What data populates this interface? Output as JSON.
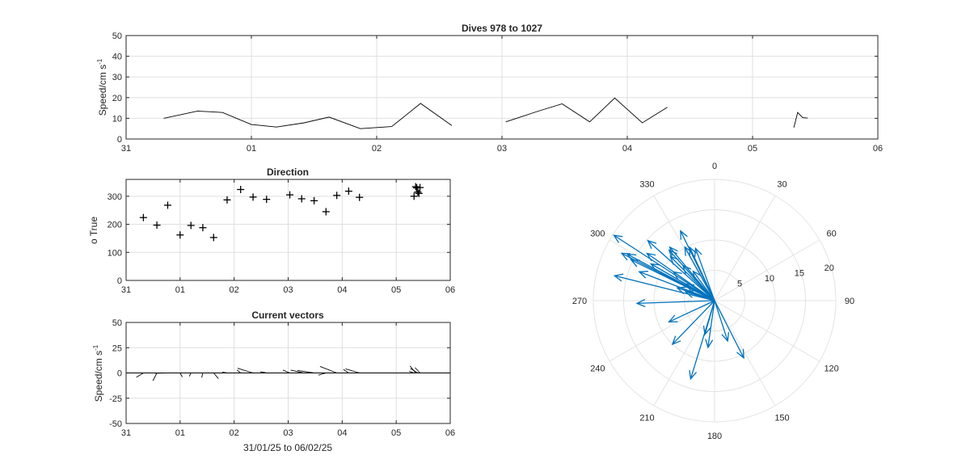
{
  "chart_data": [
    {
      "id": "speed",
      "type": "line",
      "title": "Dives 978 to 1027",
      "ylabel": "Speed/cm s",
      "ylabel_sup": "-1",
      "xlabel": "",
      "ylim": [
        0,
        50
      ],
      "yticks": [
        0,
        10,
        20,
        30,
        40,
        50
      ],
      "xlim_days": [
        31,
        37
      ],
      "xticks": [
        "31",
        "01",
        "02",
        "03",
        "04",
        "05",
        "06"
      ],
      "grid": true,
      "segments": [
        [
          [
            31.3,
            10
          ],
          [
            31.57,
            13.5
          ],
          [
            31.77,
            12.8
          ],
          [
            32.0,
            7
          ],
          [
            32.2,
            5.8
          ],
          [
            32.42,
            7.8
          ],
          [
            32.62,
            10.6
          ],
          [
            32.87,
            5
          ],
          [
            33.12,
            6
          ],
          [
            33.35,
            17.2
          ],
          [
            33.6,
            6.5
          ]
        ],
        [
          [
            34.03,
            8.3
          ],
          [
            34.28,
            13.3
          ],
          [
            34.48,
            17
          ],
          [
            34.7,
            8.3
          ],
          [
            34.9,
            19.8
          ],
          [
            35.12,
            7.8
          ],
          [
            35.32,
            15.3
          ]
        ],
        [
          [
            36.33,
            5.5
          ],
          [
            36.36,
            12.8
          ],
          [
            36.4,
            10.3
          ],
          [
            36.44,
            10.1
          ]
        ]
      ]
    },
    {
      "id": "direction",
      "type": "scatter",
      "title": "Direction",
      "ylabel": "o True",
      "xlabel": "",
      "ylim": [
        0,
        360
      ],
      "yticks": [
        0,
        100,
        200,
        300
      ],
      "xlim_days": [
        31,
        37
      ],
      "xticks": [
        "31",
        "01",
        "02",
        "03",
        "04",
        "05",
        "06"
      ],
      "grid": true,
      "marker": "+",
      "points": [
        [
          31.32,
          224
        ],
        [
          31.57,
          197
        ],
        [
          31.77,
          268
        ],
        [
          32.0,
          162
        ],
        [
          32.2,
          196
        ],
        [
          32.42,
          188
        ],
        [
          32.62,
          153
        ],
        [
          32.87,
          287
        ],
        [
          33.12,
          324
        ],
        [
          33.35,
          297
        ],
        [
          33.6,
          289
        ],
        [
          34.03,
          305
        ],
        [
          34.25,
          291
        ],
        [
          34.48,
          284
        ],
        [
          34.7,
          245
        ],
        [
          34.9,
          303
        ],
        [
          35.12,
          318
        ],
        [
          35.32,
          296
        ],
        [
          36.33,
          300
        ],
        [
          36.36,
          334
        ],
        [
          36.38,
          330
        ],
        [
          36.4,
          315
        ],
        [
          36.42,
          310
        ],
        [
          36.44,
          331
        ]
      ]
    },
    {
      "id": "vectors",
      "type": "stick",
      "title": "Current vectors",
      "ylabel": "Speed/cm s",
      "ylabel_sup": "-1",
      "xlabel": "31/01/25 to 06/02/25",
      "ylim": [
        -50,
        50
      ],
      "yticks": [
        -50,
        -25,
        0,
        25,
        50
      ],
      "xlim_days": [
        31,
        37
      ],
      "xticks": [
        "31",
        "01",
        "02",
        "03",
        "04",
        "05",
        "06"
      ],
      "grid": true,
      "sticks": [
        [
          31.32,
          -10,
          224
        ],
        [
          31.57,
          -13.5,
          197
        ],
        [
          31.77,
          -12.8,
          268
        ],
        [
          32.0,
          -7,
          162
        ],
        [
          32.2,
          -5.8,
          196
        ],
        [
          32.42,
          -7.8,
          188
        ],
        [
          32.62,
          -10.6,
          153
        ],
        [
          32.87,
          -5,
          287
        ],
        [
          33.12,
          6,
          324
        ],
        [
          33.35,
          17.2,
          297
        ],
        [
          33.6,
          6.5,
          289
        ],
        [
          34.03,
          8.3,
          305
        ],
        [
          34.28,
          13.3,
          291
        ],
        [
          34.48,
          17,
          284
        ],
        [
          34.7,
          8.3,
          245
        ],
        [
          34.9,
          19.8,
          303
        ],
        [
          35.12,
          7.8,
          318
        ],
        [
          35.32,
          15.3,
          296
        ],
        [
          36.33,
          5.5,
          300
        ],
        [
          36.36,
          12.8,
          334
        ],
        [
          36.4,
          10.3,
          315
        ],
        [
          36.44,
          10.1,
          331
        ]
      ]
    },
    {
      "id": "compass",
      "type": "polar",
      "title": "",
      "rlim": [
        0,
        20
      ],
      "rticks": [
        "5",
        "10",
        "15",
        "20"
      ],
      "theta_labels": [
        "0",
        "30",
        "60",
        "90",
        "120",
        "150",
        "180",
        "210",
        "240",
        "270",
        "300",
        "330"
      ],
      "color": "#0072bd",
      "arrows": [
        [
          10,
          224
        ],
        [
          13.5,
          197
        ],
        [
          12.8,
          268
        ],
        [
          7,
          162
        ],
        [
          5.8,
          196
        ],
        [
          7.8,
          188
        ],
        [
          10.6,
          153
        ],
        [
          5,
          287
        ],
        [
          6,
          324
        ],
        [
          17.2,
          297
        ],
        [
          6.5,
          289
        ],
        [
          8.3,
          305
        ],
        [
          13.3,
          291
        ],
        [
          17,
          284
        ],
        [
          8.3,
          245
        ],
        [
          19.8,
          303
        ],
        [
          7.8,
          318
        ],
        [
          15.3,
          296
        ],
        [
          5.5,
          300
        ],
        [
          12.8,
          334
        ],
        [
          10.3,
          315
        ],
        [
          10.1,
          331
        ],
        [
          13.6,
          305
        ],
        [
          11.5,
          320
        ],
        [
          9.2,
          340
        ],
        [
          14.8,
          312
        ],
        [
          12.1,
          300
        ],
        [
          9.7,
          335
        ],
        [
          16.3,
          298
        ],
        [
          11.2,
          318
        ]
      ]
    }
  ]
}
